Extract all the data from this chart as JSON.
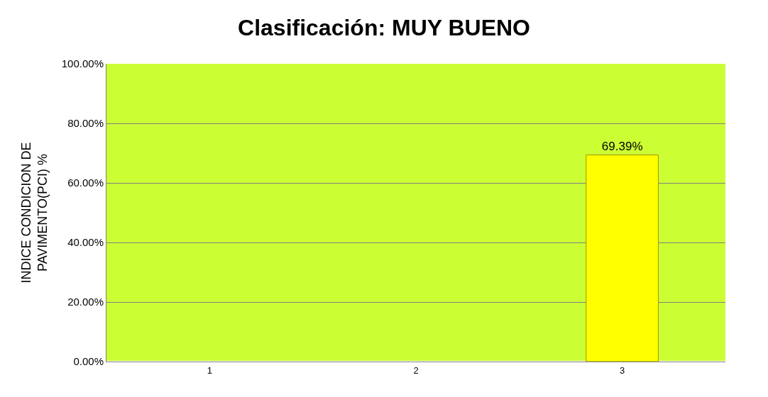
{
  "chart_data": {
    "type": "bar",
    "title": "Clasificación: MUY BUENO",
    "ylabel": "INDICE CONDICION DE\nPAVIMENTO(PCI) %",
    "categories": [
      "1",
      "2",
      "3"
    ],
    "values": [
      null,
      null,
      69.39
    ],
    "value_labels": [
      null,
      null,
      "69.39%"
    ],
    "color": "#ffff00",
    "ylim": [
      0,
      100
    ],
    "yticks": [
      {
        "value": 0,
        "label": "0.00%"
      },
      {
        "value": 20,
        "label": "20.00%"
      },
      {
        "value": 40,
        "label": "40.00%"
      },
      {
        "value": 60,
        "label": "60.00%"
      },
      {
        "value": 80,
        "label": "80.00%"
      },
      {
        "value": 100,
        "label": "100.00%"
      }
    ],
    "grid": "y"
  }
}
